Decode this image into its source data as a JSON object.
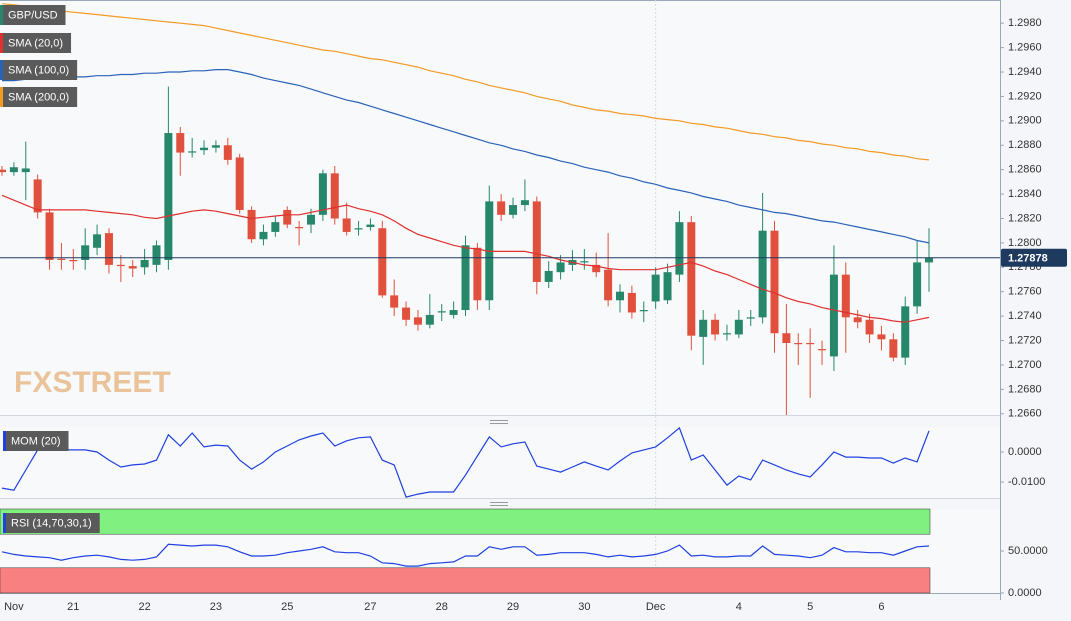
{
  "chart_data": [
    {
      "type": "candlestick",
      "symbol": "GBP/USD",
      "watermark": "FXSTREET",
      "categories": [
        null,
        "Nov",
        null,
        null,
        null,
        null,
        "21",
        null,
        null,
        null,
        null,
        null,
        "22",
        null,
        null,
        null,
        null,
        null,
        "23",
        null,
        null,
        null,
        null,
        null,
        "25",
        null,
        null,
        null,
        null,
        null,
        null,
        "27",
        null,
        null,
        null,
        null,
        null,
        "28",
        null,
        null,
        null,
        null,
        null,
        "29",
        null,
        null,
        null,
        null,
        null,
        "30",
        null,
        null,
        null,
        null,
        null,
        "Dec",
        null,
        null,
        null,
        null,
        null,
        null,
        "4",
        null,
        null,
        null,
        null,
        null,
        "5",
        null,
        null,
        null,
        null,
        null,
        "6",
        null,
        null,
        null,
        null
      ],
      "open": [
        1.286,
        1.2858,
        1.2858,
        1.2852,
        1.2825,
        1.2787,
        1.2786,
        1.2786,
        1.2796,
        1.2808,
        1.2782,
        1.2781,
        1.278,
        1.2782,
        1.2786,
        1.289,
        1.2874,
        1.2876,
        1.2878,
        1.288,
        1.287,
        1.2827,
        1.2803,
        1.2809,
        1.2827,
        1.2813,
        1.2815,
        1.2823,
        1.2857,
        1.282,
        1.2811,
        1.2813,
        1.2812,
        1.2757,
        1.2747,
        1.2739,
        1.2733,
        1.2743,
        1.2741,
        1.2745,
        1.2796,
        1.2753,
        1.2834,
        1.2823,
        1.2831,
        1.2834,
        1.2768,
        1.2776,
        1.2782,
        1.2784,
        1.2782,
        1.2778,
        1.2753,
        1.2759,
        1.2744,
        1.2752,
        1.2753,
        1.2774,
        1.2817,
        1.2723,
        1.2737,
        1.2725,
        1.2725,
        1.2738,
        1.2739,
        1.281,
        1.2726,
        1.2718,
        1.2718,
        1.2713,
        1.2707,
        1.2774,
        1.2739,
        1.2737,
        1.2725,
        1.2721,
        1.2706,
        1.2748,
        1.2784
      ],
      "high": [
        1.2863,
        1.2866,
        1.2883,
        1.2856,
        1.2828,
        1.28,
        1.2795,
        1.2812,
        1.2815,
        1.2812,
        1.279,
        1.2786,
        1.2795,
        1.2802,
        1.2928,
        1.2895,
        1.2886,
        1.2884,
        1.2884,
        1.2886,
        1.2873,
        1.283,
        1.2815,
        1.2822,
        1.283,
        1.2818,
        1.2828,
        1.286,
        1.2863,
        1.2833,
        1.2818,
        1.282,
        1.2818,
        1.277,
        1.2752,
        1.2745,
        1.2758,
        1.275,
        1.2752,
        1.2806,
        1.28,
        1.2847,
        1.284,
        1.2837,
        1.2852,
        1.2838,
        1.2785,
        1.279,
        1.2794,
        1.2795,
        1.2792,
        1.2808,
        1.2766,
        1.2765,
        1.2752,
        1.278,
        1.2783,
        1.2826,
        1.2822,
        1.2745,
        1.2742,
        1.2733,
        1.2745,
        1.2745,
        1.2841,
        1.2818,
        1.275,
        1.2726,
        1.273,
        1.272,
        1.2798,
        1.2784,
        1.2745,
        1.2742,
        1.2732,
        1.2726,
        1.2756,
        1.2802,
        1.2812
      ],
      "low": [
        1.2855,
        1.2855,
        1.2835,
        1.282,
        1.2778,
        1.2778,
        1.2778,
        1.2778,
        1.279,
        1.2775,
        1.2768,
        1.2772,
        1.2774,
        1.2776,
        1.2778,
        1.2855,
        1.287,
        1.2872,
        1.2874,
        1.2864,
        1.2824,
        1.28,
        1.2798,
        1.2805,
        1.2812,
        1.2798,
        1.2808,
        1.2818,
        1.2815,
        1.2806,
        1.2806,
        1.281,
        1.2755,
        1.274,
        1.2732,
        1.2728,
        1.273,
        1.2736,
        1.2738,
        1.274,
        1.2745,
        1.2745,
        1.2818,
        1.282,
        1.2826,
        1.2758,
        1.2763,
        1.277,
        1.2777,
        1.2778,
        1.2772,
        1.2748,
        1.2743,
        1.2738,
        1.2735,
        1.2746,
        1.275,
        1.2768,
        1.2712,
        1.27,
        1.272,
        1.272,
        1.2722,
        1.2732,
        1.2734,
        1.271,
        1.2659,
        1.27,
        1.2673,
        1.27,
        1.2695,
        1.271,
        1.273,
        1.2718,
        1.2712,
        1.2703,
        1.27,
        1.2742,
        1.276
      ],
      "close": [
        1.2858,
        1.2862,
        1.2861,
        1.2825,
        1.2786,
        1.2786,
        1.2785,
        1.2798,
        1.2807,
        1.2782,
        1.2781,
        1.2779,
        1.2786,
        1.2798,
        1.289,
        1.2874,
        1.2875,
        1.2878,
        1.288,
        1.2868,
        1.2827,
        1.2803,
        1.2809,
        1.2817,
        1.2815,
        1.2812,
        1.2823,
        1.2857,
        1.282,
        1.2809,
        1.2812,
        1.2815,
        1.2757,
        1.2747,
        1.2737,
        1.2733,
        1.2741,
        1.2744,
        1.2745,
        1.2798,
        1.2753,
        1.2834,
        1.2823,
        1.2831,
        1.2835,
        1.2768,
        1.2777,
        1.2784,
        1.2786,
        1.2785,
        1.2776,
        1.2753,
        1.276,
        1.2743,
        1.2745,
        1.2774,
        1.2776,
        1.2817,
        1.2724,
        1.2737,
        1.2725,
        1.2726,
        1.2737,
        1.2739,
        1.281,
        1.2726,
        1.2718,
        1.2717,
        1.2717,
        1.2712,
        1.2774,
        1.2739,
        1.2735,
        1.2725,
        1.2721,
        1.2706,
        1.2748,
        1.2784,
        1.2788
      ],
      "up_color": "#26876a",
      "down_color": "#e0503c",
      "series": [
        {
          "name": "SMA (20,0)",
          "color": "#e03030",
          "values": [
            1.2839,
            1.2835,
            1.2831,
            1.2827,
            1.2827,
            1.2827,
            1.2827,
            1.2827,
            1.2826,
            1.2825,
            1.2824,
            1.2823,
            1.2821,
            1.282,
            1.2822,
            1.2824,
            1.2826,
            1.2827,
            1.2826,
            1.2824,
            1.2822,
            1.282,
            1.2821,
            1.2822,
            1.2823,
            1.2823,
            1.2825,
            1.2827,
            1.2829,
            1.2831,
            1.2828,
            1.2826,
            1.2823,
            1.2818,
            1.2812,
            1.2807,
            1.2804,
            1.2801,
            1.2798,
            1.2796,
            1.2795,
            1.2793,
            1.2793,
            1.2793,
            1.2793,
            1.2791,
            1.2789,
            1.2786,
            1.2784,
            1.2782,
            1.2781,
            1.2779,
            1.2778,
            1.2778,
            1.2778,
            1.2778,
            1.278,
            1.2782,
            1.2784,
            1.2781,
            1.2777,
            1.2774,
            1.277,
            1.2766,
            1.2762,
            1.2759,
            1.2755,
            1.2752,
            1.275,
            1.2747,
            1.2745,
            1.2743,
            1.2741,
            1.2739,
            1.2738,
            1.2736,
            1.2735,
            1.2737,
            1.2739
          ]
        },
        {
          "name": "SMA (100,0)",
          "color": "#2a62b8",
          "values": [
            1.2933,
            1.2933,
            1.2934,
            1.2934,
            1.2935,
            1.2935,
            1.2936,
            1.2936,
            1.2937,
            1.2937,
            1.2938,
            1.2938,
            1.2939,
            1.2939,
            1.294,
            1.294,
            1.2941,
            1.2941,
            1.2942,
            1.2942,
            1.294,
            1.2938,
            1.2935,
            1.2933,
            1.2931,
            1.2929,
            1.2926,
            1.2923,
            1.292,
            1.2917,
            1.2915,
            1.2912,
            1.2909,
            1.2906,
            1.2903,
            1.29,
            1.2897,
            1.2894,
            1.2891,
            1.2888,
            1.2885,
            1.2882,
            1.288,
            1.2877,
            1.2875,
            1.2872,
            1.287,
            1.2867,
            1.2865,
            1.2862,
            1.286,
            1.2858,
            1.2855,
            1.2853,
            1.285,
            1.2848,
            1.2845,
            1.2843,
            1.2841,
            1.2838,
            1.2836,
            1.2834,
            1.2831,
            1.2829,
            1.2827,
            1.2825,
            1.2824,
            1.2822,
            1.282,
            1.2818,
            1.2817,
            1.2815,
            1.2813,
            1.2811,
            1.2809,
            1.2807,
            1.2805,
            1.2802,
            1.28
          ]
        },
        {
          "name": "SMA (200,0)",
          "color": "#f39a25",
          "values": [
            1.2996,
            1.2995,
            1.2994,
            1.2993,
            1.2991,
            1.299,
            1.2989,
            1.2988,
            1.2987,
            1.2986,
            1.2985,
            1.2984,
            1.2983,
            1.2982,
            1.2981,
            1.298,
            1.2979,
            1.2978,
            1.2976,
            1.2974,
            1.2972,
            1.297,
            1.2968,
            1.2966,
            1.2964,
            1.2962,
            1.296,
            1.2958,
            1.2957,
            1.2955,
            1.2953,
            1.2951,
            1.295,
            1.2948,
            1.2946,
            1.2944,
            1.2941,
            1.2939,
            1.2937,
            1.2934,
            1.2932,
            1.2929,
            1.2927,
            1.2925,
            1.2923,
            1.292,
            1.2918,
            1.2916,
            1.2913,
            1.2911,
            1.2909,
            1.2908,
            1.2906,
            1.2905,
            1.2904,
            1.2902,
            1.2901,
            1.29,
            1.2898,
            1.2897,
            1.2895,
            1.2894,
            1.2892,
            1.289,
            1.2889,
            1.2887,
            1.2886,
            1.2884,
            1.2883,
            1.2881,
            1.288,
            1.2878,
            1.2877,
            1.2875,
            1.2874,
            1.2872,
            1.2871,
            1.2869,
            1.2868
          ]
        }
      ],
      "last_price": 1.27878,
      "last_price_color": "#1f3a5f",
      "ylim": [
        1.2659,
        1.2999
      ],
      "yticks": [
        {
          "value": 1.266,
          "label": "1.2660"
        },
        {
          "value": 1.268,
          "label": "1.2680"
        },
        {
          "value": 1.27,
          "label": "1.2700"
        },
        {
          "value": 1.272,
          "label": "1.2720"
        },
        {
          "value": 1.274,
          "label": "1.2740"
        },
        {
          "value": 1.276,
          "label": "1.2760"
        },
        {
          "value": 1.278,
          "label": "1.2780"
        },
        {
          "value": 1.28,
          "label": "1.2800"
        },
        {
          "value": 1.282,
          "label": "1.2820"
        },
        {
          "value": 1.284,
          "label": "1.2840"
        },
        {
          "value": 1.286,
          "label": "1.2860"
        },
        {
          "value": 1.288,
          "label": "1.2880"
        },
        {
          "value": 1.29,
          "label": "1.2900"
        },
        {
          "value": 1.292,
          "label": "1.2920"
        },
        {
          "value": 1.294,
          "label": "1.2940"
        },
        {
          "value": 1.296,
          "label": "1.2960"
        },
        {
          "value": 1.298,
          "label": "1.2980"
        }
      ]
    },
    {
      "type": "line",
      "series": [
        {
          "name": "MOM (20)",
          "color": "#2040e0",
          "values": [
            -0.012,
            -0.0127,
            -0.006,
            0.0007,
            0.0007,
            0.0007,
            0.0007,
            0.0007,
            0.0,
            -0.0027,
            -0.005,
            -0.0043,
            -0.004,
            -0.0027,
            0.0057,
            0.002,
            0.0063,
            0.0017,
            0.0023,
            0.002,
            -0.0027,
            -0.0057,
            -0.0033,
            0.0,
            0.002,
            0.004,
            0.0053,
            0.0063,
            0.002,
            0.0037,
            0.0047,
            0.005,
            -0.0027,
            -0.0043,
            -0.015,
            -0.014,
            -0.0133,
            -0.0133,
            -0.0133,
            -0.0077,
            -0.0013,
            0.005,
            0.0017,
            0.0027,
            0.0033,
            -0.0047,
            -0.0057,
            -0.0067,
            -0.005,
            -0.0033,
            -0.0047,
            -0.006,
            -0.003,
            -0.0003,
            0.0007,
            0.0017,
            0.0047,
            0.008,
            -0.0027,
            -0.001,
            -0.006,
            -0.011,
            -0.008,
            -0.0093,
            -0.0027,
            -0.0043,
            -0.006,
            -0.0073,
            -0.0083,
            -0.0043,
            0.0,
            -0.0017,
            -0.0017,
            -0.002,
            -0.002,
            -0.0037,
            -0.002,
            -0.0033,
            0.007
          ]
        }
      ],
      "ylim": [
        -0.0153,
        0.0083
      ],
      "yticks": [
        {
          "value": 0,
          "label": "0.0000"
        },
        {
          "value": -0.01,
          "label": "-0.0100"
        }
      ]
    },
    {
      "type": "line",
      "series": [
        {
          "name": "RSI (14,70,30,1)",
          "color": "#2040e0",
          "values": [
            49,
            46,
            44,
            43,
            42,
            39,
            42,
            44,
            45,
            43,
            40,
            39,
            40,
            43,
            58,
            57,
            56,
            57,
            57,
            55,
            49,
            44,
            44,
            45,
            48,
            50,
            52,
            55,
            49,
            48,
            48,
            44,
            36,
            35,
            32,
            32,
            35,
            36,
            37,
            44,
            44,
            55,
            52,
            55,
            55,
            45,
            46,
            48,
            48,
            48,
            46,
            43,
            45,
            43,
            44,
            46,
            50,
            57,
            44,
            45,
            43,
            43,
            44,
            44,
            56,
            46,
            45,
            44,
            42,
            45,
            54,
            49,
            49,
            48,
            48,
            45,
            50,
            55,
            56
          ]
        }
      ],
      "zones": [
        {
          "from": 70,
          "to": 100,
          "color": "#80f080"
        },
        {
          "from": 0,
          "to": 30,
          "color": "#f88080"
        }
      ],
      "ylim": [
        0,
        100
      ],
      "yticks": [
        {
          "value": 50,
          "label": "50.0000"
        },
        {
          "value": 0,
          "label": "0.0000"
        }
      ]
    }
  ]
}
